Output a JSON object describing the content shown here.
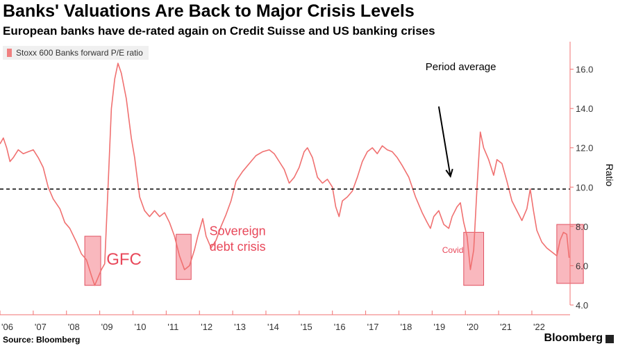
{
  "header": {
    "title": "Banks' Valuations Are Back to Major Crisis Levels",
    "subtitle": "European banks have de-rated again on Credit Suisse and US banking crises"
  },
  "footer": {
    "source": "Source: Bloomberg",
    "brand": "Bloomberg"
  },
  "colors": {
    "series": "#f07070",
    "box_fill": "#f7a0a8",
    "box_stroke": "#e05060",
    "axis": "#f07070",
    "average": "#000000"
  },
  "chart_data": {
    "type": "line",
    "ylabel": "Ratio",
    "ylim": [
      4.0,
      17.4
    ],
    "yticks": [
      {
        "v": 4,
        "label": "4.0"
      },
      {
        "v": 6,
        "label": "6.0"
      },
      {
        "v": 8,
        "label": "8.0"
      },
      {
        "v": 10,
        "label": "10.0"
      },
      {
        "v": 12,
        "label": "12.0"
      },
      {
        "v": 14,
        "label": "14.0"
      },
      {
        "v": 16,
        "label": "16.0"
      }
    ],
    "xlim": [
      2006.0,
      2023.15
    ],
    "xticks": [
      {
        "v": 2006,
        "label": "'06"
      },
      {
        "v": 2007,
        "label": "'07"
      },
      {
        "v": 2008,
        "label": "'08"
      },
      {
        "v": 2009,
        "label": "'09"
      },
      {
        "v": 2010,
        "label": "'10"
      },
      {
        "v": 2011,
        "label": "'11"
      },
      {
        "v": 2012,
        "label": "'12"
      },
      {
        "v": 2013,
        "label": "'13"
      },
      {
        "v": 2014,
        "label": "'14"
      },
      {
        "v": 2015,
        "label": "'15"
      },
      {
        "v": 2016,
        "label": "'16"
      },
      {
        "v": 2017,
        "label": "'17"
      },
      {
        "v": 2018,
        "label": "'18"
      },
      {
        "v": 2019,
        "label": "'19"
      },
      {
        "v": 2020,
        "label": "'20"
      },
      {
        "v": 2021,
        "label": "'21"
      },
      {
        "v": 2022,
        "label": "'22"
      }
    ],
    "grid": false,
    "legend_position": "top-left",
    "average": 9.9,
    "series": [
      {
        "name": "Stoxx 600 Banks forward P/E ratio",
        "points": [
          [
            2006.0,
            12.2
          ],
          [
            2006.1,
            12.5
          ],
          [
            2006.2,
            12.0
          ],
          [
            2006.3,
            11.3
          ],
          [
            2006.4,
            11.5
          ],
          [
            2006.55,
            11.9
          ],
          [
            2006.7,
            11.7
          ],
          [
            2006.85,
            11.8
          ],
          [
            2007.0,
            11.9
          ],
          [
            2007.15,
            11.5
          ],
          [
            2007.3,
            11.0
          ],
          [
            2007.45,
            10.0
          ],
          [
            2007.6,
            9.4
          ],
          [
            2007.8,
            8.9
          ],
          [
            2007.95,
            8.2
          ],
          [
            2008.1,
            7.9
          ],
          [
            2008.3,
            7.2
          ],
          [
            2008.45,
            6.6
          ],
          [
            2008.6,
            6.3
          ],
          [
            2008.75,
            5.5
          ],
          [
            2008.85,
            5.0
          ],
          [
            2008.95,
            5.4
          ],
          [
            2009.05,
            5.8
          ],
          [
            2009.15,
            6.1
          ],
          [
            2009.25,
            10.0
          ],
          [
            2009.35,
            14.0
          ],
          [
            2009.45,
            15.5
          ],
          [
            2009.55,
            16.3
          ],
          [
            2009.65,
            15.8
          ],
          [
            2009.8,
            14.5
          ],
          [
            2009.95,
            12.5
          ],
          [
            2010.05,
            11.5
          ],
          [
            2010.2,
            9.5
          ],
          [
            2010.35,
            8.8
          ],
          [
            2010.5,
            8.5
          ],
          [
            2010.65,
            8.8
          ],
          [
            2010.8,
            8.5
          ],
          [
            2010.95,
            8.7
          ],
          [
            2011.1,
            8.2
          ],
          [
            2011.25,
            7.5
          ],
          [
            2011.4,
            6.5
          ],
          [
            2011.55,
            5.8
          ],
          [
            2011.7,
            6.0
          ],
          [
            2011.85,
            6.8
          ],
          [
            2011.95,
            7.5
          ],
          [
            2012.1,
            8.4
          ],
          [
            2012.2,
            7.5
          ],
          [
            2012.35,
            6.9
          ],
          [
            2012.5,
            7.3
          ],
          [
            2012.65,
            8.0
          ],
          [
            2012.8,
            8.6
          ],
          [
            2012.95,
            9.3
          ],
          [
            2013.1,
            10.3
          ],
          [
            2013.3,
            10.8
          ],
          [
            2013.5,
            11.2
          ],
          [
            2013.7,
            11.6
          ],
          [
            2013.9,
            11.8
          ],
          [
            2014.1,
            11.9
          ],
          [
            2014.25,
            11.7
          ],
          [
            2014.4,
            11.3
          ],
          [
            2014.55,
            10.9
          ],
          [
            2014.7,
            10.2
          ],
          [
            2014.85,
            10.5
          ],
          [
            2015.0,
            11.0
          ],
          [
            2015.15,
            11.8
          ],
          [
            2015.25,
            12.0
          ],
          [
            2015.4,
            11.5
          ],
          [
            2015.55,
            10.5
          ],
          [
            2015.7,
            10.2
          ],
          [
            2015.85,
            10.4
          ],
          [
            2016.0,
            10.0
          ],
          [
            2016.1,
            9.0
          ],
          [
            2016.2,
            8.5
          ],
          [
            2016.3,
            9.3
          ],
          [
            2016.45,
            9.5
          ],
          [
            2016.6,
            9.8
          ],
          [
            2016.75,
            10.5
          ],
          [
            2016.9,
            11.3
          ],
          [
            2017.05,
            11.8
          ],
          [
            2017.2,
            12.0
          ],
          [
            2017.35,
            11.7
          ],
          [
            2017.5,
            12.1
          ],
          [
            2017.65,
            11.9
          ],
          [
            2017.8,
            11.8
          ],
          [
            2017.95,
            11.5
          ],
          [
            2018.1,
            11.1
          ],
          [
            2018.3,
            10.5
          ],
          [
            2018.5,
            9.5
          ],
          [
            2018.7,
            8.7
          ],
          [
            2018.85,
            8.2
          ],
          [
            2018.95,
            7.9
          ],
          [
            2019.05,
            8.5
          ],
          [
            2019.2,
            8.8
          ],
          [
            2019.35,
            8.1
          ],
          [
            2019.5,
            7.9
          ],
          [
            2019.6,
            8.5
          ],
          [
            2019.75,
            9.0
          ],
          [
            2019.85,
            9.2
          ],
          [
            2019.95,
            8.2
          ],
          [
            2020.05,
            7.5
          ],
          [
            2020.15,
            5.8
          ],
          [
            2020.25,
            6.8
          ],
          [
            2020.35,
            10.0
          ],
          [
            2020.45,
            12.8
          ],
          [
            2020.55,
            12.0
          ],
          [
            2020.7,
            11.4
          ],
          [
            2020.85,
            10.6
          ],
          [
            2020.95,
            11.4
          ],
          [
            2021.1,
            11.2
          ],
          [
            2021.25,
            10.3
          ],
          [
            2021.4,
            9.3
          ],
          [
            2021.55,
            8.8
          ],
          [
            2021.7,
            8.3
          ],
          [
            2021.85,
            8.9
          ],
          [
            2021.95,
            9.9
          ],
          [
            2022.05,
            8.8
          ],
          [
            2022.15,
            7.8
          ],
          [
            2022.3,
            7.2
          ],
          [
            2022.45,
            6.9
          ],
          [
            2022.6,
            6.7
          ],
          [
            2022.75,
            6.5
          ],
          [
            2022.85,
            7.3
          ],
          [
            2022.95,
            7.7
          ],
          [
            2023.05,
            7.6
          ],
          [
            2023.12,
            6.4
          ]
        ]
      }
    ],
    "crisis_boxes": [
      {
        "x0": 2008.55,
        "x1": 2009.03,
        "y0": 5.0,
        "y1": 7.5
      },
      {
        "x0": 2011.3,
        "x1": 2011.75,
        "y0": 5.3,
        "y1": 7.6
      },
      {
        "x0": 2019.95,
        "x1": 2020.55,
        "y0": 5.0,
        "y1": 7.7
      },
      {
        "x0": 2022.75,
        "x1": 2023.55,
        "y0": 5.1,
        "y1": 8.1
      }
    ],
    "annotations": [
      {
        "text": "GFC",
        "x": 2009.2,
        "y": 6.05,
        "size": 24,
        "color": "#e8485a"
      },
      {
        "text": "Sovereign",
        "x": 2012.3,
        "y": 7.55,
        "size": 18,
        "color": "#e8485a"
      },
      {
        "text": "debt crisis",
        "x": 2012.3,
        "y": 6.75,
        "size": 18,
        "color": "#e8485a"
      },
      {
        "text": "Covid",
        "x": 2019.3,
        "y": 6.65,
        "size": 12,
        "color": "#e8485a"
      },
      {
        "text": "Period average",
        "x": 2018.8,
        "y": 15.95,
        "size": 15,
        "color": "#000000"
      }
    ],
    "arrow": {
      "x0": 2019.2,
      "y0": 14.1,
      "x1": 2019.55,
      "y1": 10.55
    }
  }
}
